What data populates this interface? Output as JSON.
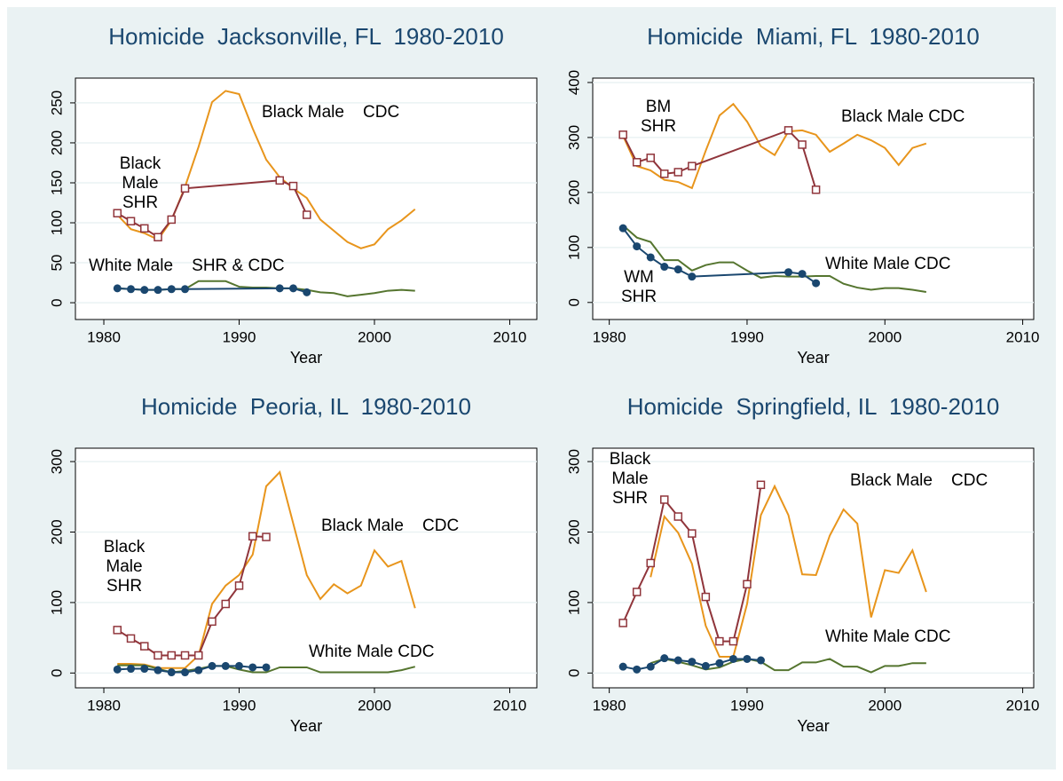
{
  "chart_data": [
    {
      "type": "line",
      "title": "Homicide  Jacksonville, FL  1980-2010",
      "xlabel": "Year",
      "xlim": [
        1977.9,
        2012
      ],
      "xticks": [
        1980,
        1990,
        2000,
        2010
      ],
      "ylim": [
        -21,
        281
      ],
      "yticks": [
        0,
        50,
        100,
        150,
        200,
        250
      ],
      "grid": true,
      "annotations": [
        "Black Male    CDC",
        [
          "Black",
          "Male",
          "SHR"
        ],
        "White Male    SHR & CDC"
      ],
      "series": [
        {
          "color": "#e8951c",
          "marker": "none",
          "x": [
            1981,
            1982,
            1983,
            1984,
            1985,
            1986,
            1987,
            1988,
            1989,
            1990,
            1991,
            1992,
            1993,
            1994,
            1995,
            1996,
            1997,
            1998,
            1999,
            2000,
            2001,
            2002,
            2003
          ],
          "values": [
            110,
            92,
            87,
            79,
            103,
            145,
            195,
            251,
            265,
            261,
            218,
            179,
            157,
            143,
            131,
            104,
            90,
            76,
            68,
            73,
            92,
            103,
            117
          ]
        },
        {
          "color": "#90353b",
          "marker": "square-hollow",
          "x": [
            1981,
            1982,
            1983,
            1984,
            1985,
            1986,
            1993,
            1994,
            1995
          ],
          "values": [
            112,
            102,
            93,
            82,
            104,
            143,
            153,
            146,
            110
          ]
        },
        {
          "color": "#55752f",
          "marker": "none",
          "x": [
            1981,
            1982,
            1983,
            1984,
            1985,
            1986,
            1987,
            1988,
            1989,
            1990,
            1991,
            1992,
            1993,
            1994,
            1995,
            1996,
            1997,
            1998,
            1999,
            2000,
            2001,
            2002,
            2003
          ],
          "values": [
            18,
            17,
            16,
            16,
            17,
            17,
            27,
            27,
            27,
            20,
            19,
            19,
            18,
            18,
            16,
            13,
            12,
            8,
            10,
            12,
            15,
            16,
            15
          ]
        },
        {
          "color": "#1a476f",
          "marker": "circle",
          "x": [
            1981,
            1982,
            1983,
            1984,
            1985,
            1986,
            1993,
            1994,
            1995
          ],
          "values": [
            18,
            17,
            16,
            16,
            17,
            17,
            18,
            18,
            13
          ]
        }
      ]
    },
    {
      "type": "line",
      "title": "Homicide  Miami, FL  1980-2010",
      "xlabel": "Year",
      "xlim": [
        1978.8,
        2010.8
      ],
      "xticks": [
        1980,
        1990,
        2000,
        2010
      ],
      "ylim": [
        -31,
        408
      ],
      "yticks": [
        0,
        100,
        200,
        300,
        400
      ],
      "grid": true,
      "annotations": [
        [
          "BM",
          "SHR"
        ],
        "Black Male CDC",
        "White Male CDC",
        [
          "WM",
          "SHR"
        ]
      ],
      "series": [
        {
          "color": "#e8951c",
          "marker": "none",
          "x": [
            1981,
            1982,
            1983,
            1984,
            1985,
            1986,
            1987,
            1988,
            1989,
            1990,
            1991,
            1992,
            1993,
            1994,
            1995,
            1996,
            1997,
            1998,
            1999,
            2000,
            2001,
            2002,
            2003
          ],
          "values": [
            303,
            248,
            240,
            223,
            219,
            208,
            276,
            340,
            361,
            329,
            284,
            268,
            311,
            313,
            305,
            274,
            289,
            305,
            295,
            281,
            250,
            281,
            289
          ]
        },
        {
          "color": "#90353b",
          "marker": "square-hollow",
          "x": [
            1981,
            1982,
            1983,
            1984,
            1985,
            1986,
            1993,
            1994,
            1995
          ],
          "values": [
            305,
            255,
            263,
            234,
            237,
            248,
            313,
            287,
            205
          ]
        },
        {
          "color": "#55752f",
          "marker": "none",
          "x": [
            1981,
            1982,
            1983,
            1984,
            1985,
            1986,
            1987,
            1988,
            1989,
            1990,
            1991,
            1992,
            1993,
            1994,
            1995,
            1996,
            1997,
            1998,
            1999,
            2000,
            2001,
            2002,
            2003
          ],
          "values": [
            140,
            118,
            110,
            77,
            77,
            58,
            68,
            73,
            73,
            58,
            45,
            48,
            47,
            47,
            48,
            48,
            34,
            27,
            23,
            26,
            26,
            23,
            19
          ]
        },
        {
          "color": "#1a476f",
          "marker": "circle",
          "x": [
            1981,
            1982,
            1983,
            1984,
            1985,
            1986,
            1993,
            1994,
            1995
          ],
          "values": [
            135,
            102,
            82,
            65,
            60,
            47,
            55,
            52,
            35
          ]
        }
      ]
    },
    {
      "type": "line",
      "title": "Homicide  Peoria, IL  1980-2010",
      "xlabel": "Year",
      "xlim": [
        1977.9,
        2012
      ],
      "xticks": [
        1980,
        1990,
        2000,
        2010
      ],
      "ylim": [
        -21,
        319
      ],
      "yticks": [
        0,
        100,
        200,
        300
      ],
      "grid": true,
      "annotations": [
        [
          "Black",
          "Male",
          "SHR"
        ],
        "Black Male    CDC",
        "White Male CDC"
      ],
      "series": [
        {
          "color": "#e8951c",
          "marker": "none",
          "x": [
            1981,
            1982,
            1983,
            1984,
            1985,
            1986,
            1987,
            1988,
            1989,
            1990,
            1991,
            1992,
            1993,
            1994,
            1995,
            1996,
            1997,
            1998,
            1999,
            2000,
            2001,
            2002,
            2003
          ],
          "values": [
            13,
            13,
            12,
            7,
            7,
            7,
            25,
            98,
            124,
            139,
            168,
            265,
            285,
            212,
            139,
            105,
            126,
            113,
            124,
            174,
            151,
            159,
            92
          ]
        },
        {
          "color": "#90353b",
          "marker": "square-hollow",
          "x": [
            1981,
            1982,
            1983,
            1984,
            1985,
            1986,
            1987,
            1988,
            1989,
            1990,
            1991,
            1992
          ],
          "values": [
            61,
            49,
            38,
            25,
            25,
            25,
            25,
            73,
            98,
            124,
            194,
            193
          ]
        },
        {
          "color": "#55752f",
          "marker": "none",
          "x": [
            1981,
            1982,
            1983,
            1984,
            1985,
            1986,
            1987,
            1988,
            1989,
            1990,
            1991,
            1992,
            1993,
            1994,
            1995,
            1996,
            1997,
            1998,
            1999,
            2000,
            2001,
            2002,
            2003
          ],
          "values": [
            11,
            11,
            11,
            6,
            1,
            3,
            6,
            10,
            10,
            5,
            1,
            1,
            8,
            8,
            8,
            1,
            1,
            1,
            1,
            1,
            1,
            4,
            9
          ]
        },
        {
          "color": "#1a476f",
          "marker": "circle",
          "x": [
            1981,
            1982,
            1983,
            1984,
            1985,
            1986,
            1987,
            1988,
            1989,
            1990,
            1991,
            1992
          ],
          "values": [
            5,
            6,
            6,
            4,
            1,
            1,
            4,
            10,
            10,
            10,
            8,
            8
          ]
        }
      ]
    },
    {
      "type": "line",
      "title": "Homicide  Springfield, IL  1980-2010",
      "xlabel": "Year",
      "xlim": [
        1978.8,
        2010.8
      ],
      "xticks": [
        1980,
        1990,
        2000,
        2010
      ],
      "ylim": [
        -21,
        319
      ],
      "yticks": [
        0,
        100,
        200,
        300
      ],
      "grid": true,
      "annotations": [
        [
          "Black",
          "Male",
          "SHR"
        ],
        "Black Male    CDC",
        "White Male CDC"
      ],
      "series": [
        {
          "color": "#e8951c",
          "marker": "none",
          "x": [
            1983,
            1984,
            1985,
            1986,
            1987,
            1988,
            1989,
            1990,
            1991,
            1992,
            1993,
            1994,
            1995,
            1996,
            1997,
            1998,
            1999,
            2000,
            2001,
            2002,
            2003
          ],
          "values": [
            136,
            222,
            199,
            155,
            67,
            23,
            23,
            98,
            224,
            265,
            224,
            140,
            139,
            195,
            232,
            212,
            79,
            146,
            142,
            174,
            115
          ]
        },
        {
          "color": "#90353b",
          "marker": "square-hollow",
          "x": [
            1981,
            1982,
            1983,
            1984,
            1985,
            1986,
            1987,
            1988,
            1989,
            1990,
            1991
          ],
          "values": [
            71,
            115,
            156,
            246,
            222,
            198,
            108,
            45,
            45,
            126,
            267
          ]
        },
        {
          "color": "#55752f",
          "marker": "none",
          "x": [
            1983,
            1984,
            1985,
            1986,
            1987,
            1988,
            1989,
            1990,
            1991,
            1992,
            1993,
            1994,
            1995,
            1996,
            1997,
            1998,
            1999,
            2000,
            2001,
            2002,
            2003
          ],
          "values": [
            14,
            20,
            16,
            11,
            5,
            8,
            16,
            20,
            16,
            4,
            4,
            15,
            15,
            20,
            9,
            9,
            1,
            10,
            10,
            14,
            14
          ]
        },
        {
          "color": "#1a476f",
          "marker": "circle",
          "x": [
            1981,
            1982,
            1983,
            1984,
            1985,
            1986,
            1987,
            1988,
            1989,
            1990,
            1991
          ],
          "values": [
            9,
            5,
            9,
            21,
            18,
            16,
            10,
            14,
            20,
            20,
            18
          ]
        }
      ]
    }
  ]
}
